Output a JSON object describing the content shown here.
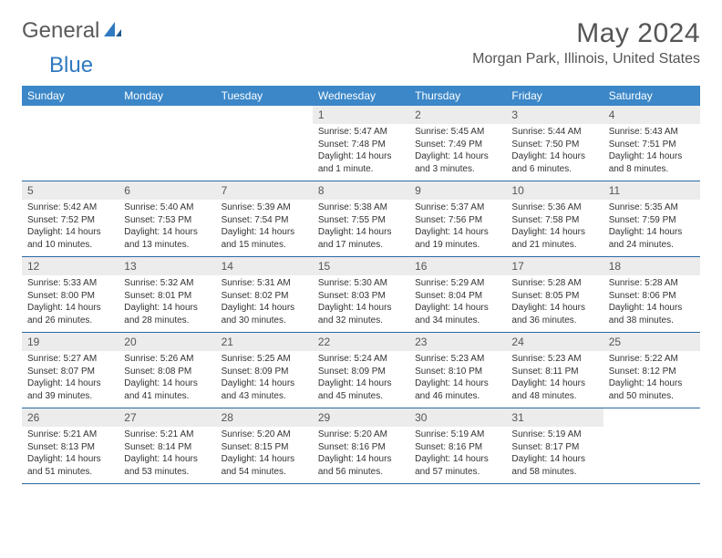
{
  "logo": {
    "word1": "General",
    "word2": "Blue",
    "word1_color": "#5a5a5a",
    "word2_color": "#2f7ac0",
    "icon_color": "#2f7ac0"
  },
  "title": "May 2024",
  "location": "Morgan Park, Illinois, United States",
  "colors": {
    "header_bg": "#3b87c8",
    "header_text": "#ffffff",
    "separator": "#2b6aa3",
    "daynum_bg": "#ececec",
    "text": "#333333",
    "title_text": "#555555"
  },
  "dow": [
    "Sunday",
    "Monday",
    "Tuesday",
    "Wednesday",
    "Thursday",
    "Friday",
    "Saturday"
  ],
  "weeks": [
    [
      null,
      null,
      null,
      {
        "n": "1",
        "sr": "5:47 AM",
        "ss": "7:48 PM",
        "dl": "14 hours and 1 minute."
      },
      {
        "n": "2",
        "sr": "5:45 AM",
        "ss": "7:49 PM",
        "dl": "14 hours and 3 minutes."
      },
      {
        "n": "3",
        "sr": "5:44 AM",
        "ss": "7:50 PM",
        "dl": "14 hours and 6 minutes."
      },
      {
        "n": "4",
        "sr": "5:43 AM",
        "ss": "7:51 PM",
        "dl": "14 hours and 8 minutes."
      }
    ],
    [
      {
        "n": "5",
        "sr": "5:42 AM",
        "ss": "7:52 PM",
        "dl": "14 hours and 10 minutes."
      },
      {
        "n": "6",
        "sr": "5:40 AM",
        "ss": "7:53 PM",
        "dl": "14 hours and 13 minutes."
      },
      {
        "n": "7",
        "sr": "5:39 AM",
        "ss": "7:54 PM",
        "dl": "14 hours and 15 minutes."
      },
      {
        "n": "8",
        "sr": "5:38 AM",
        "ss": "7:55 PM",
        "dl": "14 hours and 17 minutes."
      },
      {
        "n": "9",
        "sr": "5:37 AM",
        "ss": "7:56 PM",
        "dl": "14 hours and 19 minutes."
      },
      {
        "n": "10",
        "sr": "5:36 AM",
        "ss": "7:58 PM",
        "dl": "14 hours and 21 minutes."
      },
      {
        "n": "11",
        "sr": "5:35 AM",
        "ss": "7:59 PM",
        "dl": "14 hours and 24 minutes."
      }
    ],
    [
      {
        "n": "12",
        "sr": "5:33 AM",
        "ss": "8:00 PM",
        "dl": "14 hours and 26 minutes."
      },
      {
        "n": "13",
        "sr": "5:32 AM",
        "ss": "8:01 PM",
        "dl": "14 hours and 28 minutes."
      },
      {
        "n": "14",
        "sr": "5:31 AM",
        "ss": "8:02 PM",
        "dl": "14 hours and 30 minutes."
      },
      {
        "n": "15",
        "sr": "5:30 AM",
        "ss": "8:03 PM",
        "dl": "14 hours and 32 minutes."
      },
      {
        "n": "16",
        "sr": "5:29 AM",
        "ss": "8:04 PM",
        "dl": "14 hours and 34 minutes."
      },
      {
        "n": "17",
        "sr": "5:28 AM",
        "ss": "8:05 PM",
        "dl": "14 hours and 36 minutes."
      },
      {
        "n": "18",
        "sr": "5:28 AM",
        "ss": "8:06 PM",
        "dl": "14 hours and 38 minutes."
      }
    ],
    [
      {
        "n": "19",
        "sr": "5:27 AM",
        "ss": "8:07 PM",
        "dl": "14 hours and 39 minutes."
      },
      {
        "n": "20",
        "sr": "5:26 AM",
        "ss": "8:08 PM",
        "dl": "14 hours and 41 minutes."
      },
      {
        "n": "21",
        "sr": "5:25 AM",
        "ss": "8:09 PM",
        "dl": "14 hours and 43 minutes."
      },
      {
        "n": "22",
        "sr": "5:24 AM",
        "ss": "8:09 PM",
        "dl": "14 hours and 45 minutes."
      },
      {
        "n": "23",
        "sr": "5:23 AM",
        "ss": "8:10 PM",
        "dl": "14 hours and 46 minutes."
      },
      {
        "n": "24",
        "sr": "5:23 AM",
        "ss": "8:11 PM",
        "dl": "14 hours and 48 minutes."
      },
      {
        "n": "25",
        "sr": "5:22 AM",
        "ss": "8:12 PM",
        "dl": "14 hours and 50 minutes."
      }
    ],
    [
      {
        "n": "26",
        "sr": "5:21 AM",
        "ss": "8:13 PM",
        "dl": "14 hours and 51 minutes."
      },
      {
        "n": "27",
        "sr": "5:21 AM",
        "ss": "8:14 PM",
        "dl": "14 hours and 53 minutes."
      },
      {
        "n": "28",
        "sr": "5:20 AM",
        "ss": "8:15 PM",
        "dl": "14 hours and 54 minutes."
      },
      {
        "n": "29",
        "sr": "5:20 AM",
        "ss": "8:16 PM",
        "dl": "14 hours and 56 minutes."
      },
      {
        "n": "30",
        "sr": "5:19 AM",
        "ss": "8:16 PM",
        "dl": "14 hours and 57 minutes."
      },
      {
        "n": "31",
        "sr": "5:19 AM",
        "ss": "8:17 PM",
        "dl": "14 hours and 58 minutes."
      },
      null
    ]
  ],
  "labels": {
    "sunrise": "Sunrise: ",
    "sunset": "Sunset: ",
    "daylight": "Daylight: "
  }
}
